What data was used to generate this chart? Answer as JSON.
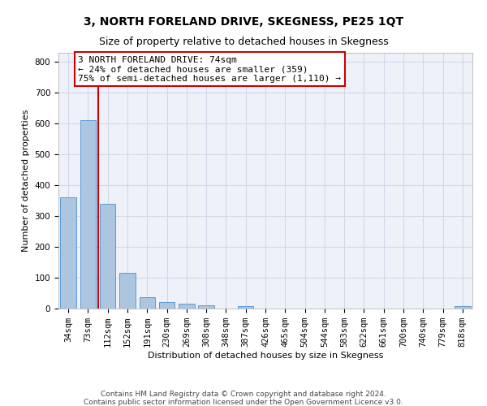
{
  "title": "3, NORTH FORELAND DRIVE, SKEGNESS, PE25 1QT",
  "subtitle": "Size of property relative to detached houses in Skegness",
  "xlabel": "Distribution of detached houses by size in Skegness",
  "ylabel": "Number of detached properties",
  "bar_labels": [
    "34sqm",
    "73sqm",
    "112sqm",
    "152sqm",
    "191sqm",
    "230sqm",
    "269sqm",
    "308sqm",
    "348sqm",
    "387sqm",
    "426sqm",
    "465sqm",
    "504sqm",
    "544sqm",
    "583sqm",
    "622sqm",
    "661sqm",
    "700sqm",
    "740sqm",
    "779sqm",
    "818sqm"
  ],
  "bar_heights": [
    360,
    610,
    340,
    115,
    38,
    20,
    15,
    10,
    0,
    8,
    0,
    0,
    0,
    0,
    0,
    0,
    0,
    0,
    0,
    0,
    8
  ],
  "bar_color": "#adc6e0",
  "bar_edge_color": "#5b9bd5",
  "grid_color": "#d0d8e8",
  "background_color": "#eef2f8",
  "property_line_color": "#cc0000",
  "annotation_text": "3 NORTH FORELAND DRIVE: 74sqm\n← 24% of detached houses are smaller (359)\n75% of semi-detached houses are larger (1,110) →",
  "annotation_box_color": "#cc0000",
  "ylim": [
    0,
    830
  ],
  "yticks": [
    0,
    100,
    200,
    300,
    400,
    500,
    600,
    700,
    800
  ],
  "footer_line1": "Contains HM Land Registry data © Crown copyright and database right 2024.",
  "footer_line2": "Contains public sector information licensed under the Open Government Licence v3.0.",
  "title_fontsize": 10,
  "subtitle_fontsize": 9,
  "axis_label_fontsize": 8,
  "tick_fontsize": 7.5,
  "footer_fontsize": 6.5,
  "annotation_fontsize": 8
}
